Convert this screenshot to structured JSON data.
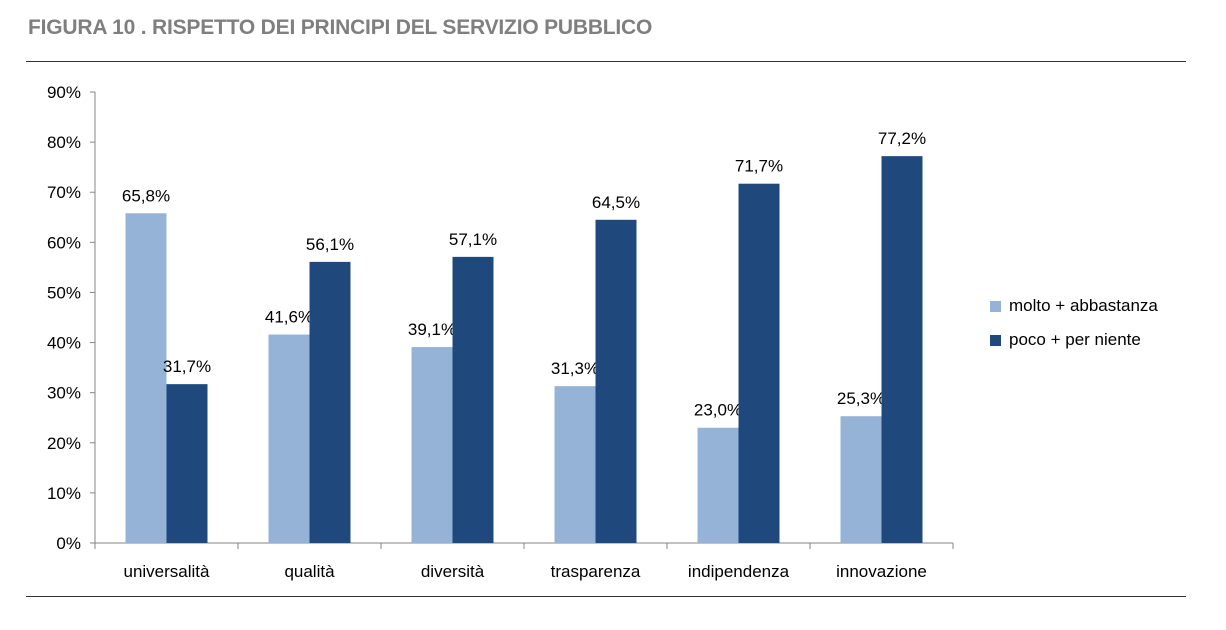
{
  "figure": {
    "title": "FIGURA 10 . RISPETTO DEI PRINCIPI DEL SERVIZIO PUBBLICO"
  },
  "colors": {
    "series1": "#95b3d7",
    "series2": "#1f497d",
    "axis": "#868686"
  },
  "chart_data": {
    "type": "bar",
    "title": "FIGURA 10 . RISPETTO DEI PRINCIPI DEL SERVIZIO PUBBLICO",
    "categories": [
      "universalità",
      "qualità",
      "diversità",
      "trasparenza",
      "indipendenza",
      "innovazione"
    ],
    "series": [
      {
        "name": "molto + abbastanza",
        "values": [
          65.8,
          41.6,
          39.1,
          31.3,
          23.0,
          25.3
        ],
        "labels": [
          "65,8%",
          "41,6%",
          "39,1%",
          "31,3%",
          "23,0%",
          "25,3%"
        ]
      },
      {
        "name": "poco + per niente",
        "values": [
          31.7,
          56.1,
          57.1,
          64.5,
          71.7,
          77.2
        ],
        "labels": [
          "31,7%",
          "56,1%",
          "57,1%",
          "64,5%",
          "71,7%",
          "77,2%"
        ]
      }
    ],
    "ylim": [
      0,
      90
    ],
    "yticks": [
      "0%",
      "10%",
      "20%",
      "30%",
      "40%",
      "50%",
      "60%",
      "70%",
      "80%",
      "90%"
    ],
    "xlabel": "",
    "ylabel": "",
    "grid": false,
    "legend_position": "right"
  }
}
